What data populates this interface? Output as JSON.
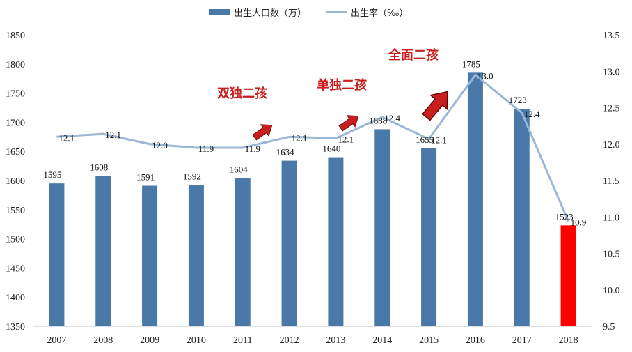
{
  "chart_data": {
    "type": "bar",
    "categories": [
      "2007",
      "2008",
      "2009",
      "2010",
      "2011",
      "2012",
      "2013",
      "2014",
      "2015",
      "2016",
      "2017",
      "2018"
    ],
    "series": [
      {
        "name": "出生人口数（万）",
        "type": "bar",
        "axis": "left",
        "values": [
          1595,
          1608,
          1591,
          1592,
          1604,
          1634,
          1640,
          1688,
          1655,
          1785,
          1723,
          1523
        ],
        "labels": [
          "1595",
          "1608",
          "1591",
          "1592",
          "1604",
          "1634",
          "1640",
          "1688",
          "1655",
          "1785",
          "1723",
          "1523"
        ],
        "color": "#4a78a8",
        "highlight": {
          "index": 11,
          "color": "#ff0000"
        }
      },
      {
        "name": "出生率（‰）",
        "type": "line",
        "axis": "right",
        "values": [
          12.1,
          12.14,
          12.0,
          11.95,
          11.95,
          12.1,
          12.08,
          12.37,
          12.07,
          12.95,
          12.43,
          10.94
        ],
        "labels": [
          "12.1",
          "12.1",
          "12.0",
          "11.9",
          "11.9",
          "12.1",
          "12.1",
          "12.4",
          "12.1",
          "13.0",
          "12.4",
          "10.9"
        ],
        "color": "#9ab7d8"
      }
    ],
    "y_left": {
      "min": 1350,
      "max": 1850,
      "ticks": [
        "1350",
        "1400",
        "1450",
        "1500",
        "1550",
        "1600",
        "1650",
        "1700",
        "1750",
        "1800",
        "1850"
      ]
    },
    "y_right": {
      "min": 9.5,
      "max": 13.5,
      "ticks": [
        "9.5",
        "10.0",
        "10.5",
        "11.0",
        "11.5",
        "12.0",
        "12.5",
        "13.0",
        "13.5"
      ]
    },
    "legend_position": "top-center",
    "grid": false,
    "annotations": [
      {
        "text": "双独二孩",
        "at_category": "2012"
      },
      {
        "text": "单独二孩",
        "at_category": "2014"
      },
      {
        "text": "全面二孩",
        "at_category": "2016"
      }
    ],
    "annotation_color": "#c81e1e"
  }
}
